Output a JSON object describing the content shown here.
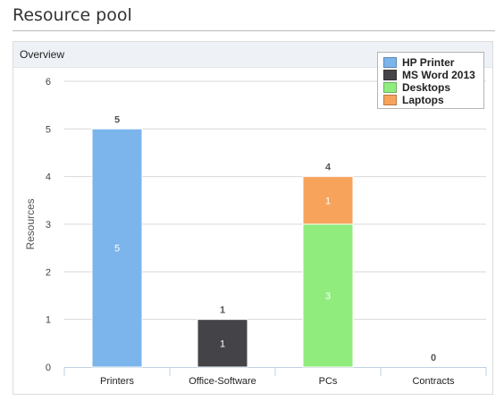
{
  "page": {
    "title": "Resource pool"
  },
  "panel": {
    "title": "Overview"
  },
  "colors": {
    "HP Printer": "#7cb5ec",
    "MS Word 2013": "#434348",
    "Desktops": "#90ed7d",
    "Laptops": "#f7a35c"
  },
  "chart_data": {
    "type": "bar",
    "stacked": true,
    "ylabel": "Resources",
    "ylim": [
      0,
      6
    ],
    "yticks": [
      0,
      1,
      2,
      3,
      4,
      5,
      6
    ],
    "grid": true,
    "legend_position": "top-right",
    "categories": [
      "Printers",
      "Office-Software",
      "PCs",
      "Contracts"
    ],
    "series": [
      {
        "name": "HP Printer",
        "values": [
          5,
          0,
          0,
          0
        ]
      },
      {
        "name": "MS Word 2013",
        "values": [
          0,
          1,
          0,
          0
        ]
      },
      {
        "name": "Desktops",
        "values": [
          0,
          0,
          3,
          0
        ]
      },
      {
        "name": "Laptops",
        "values": [
          0,
          0,
          1,
          0
        ]
      }
    ],
    "totals": [
      5,
      1,
      4,
      0
    ]
  }
}
